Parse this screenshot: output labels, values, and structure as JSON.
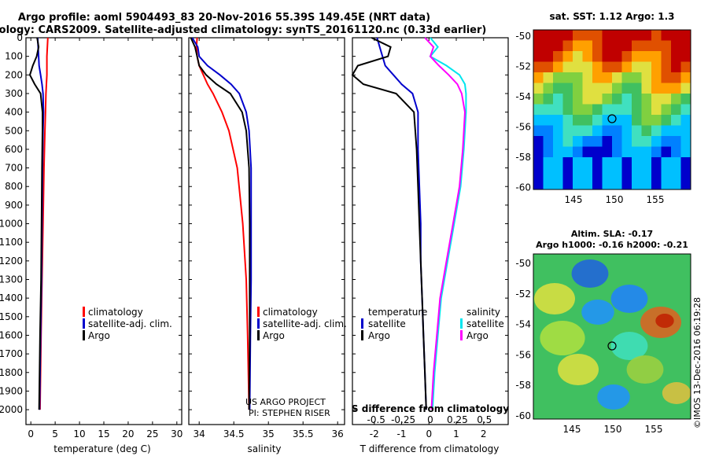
{
  "title_line1": "Argo profile: aoml 5904493_83 20-Nov-2016 55.39S 149.45E (NRT data)",
  "title_line2": "Climatology: CARS2009. Satellite-adjusted climatology: synTS_20161120.nc (0.33d earlier)",
  "colors": {
    "climatology": "#ff0000",
    "satellite": "#0000cc",
    "argo": "#000000",
    "sat_salinity": "#00e5ee",
    "clim_salinity": "#ff00ff"
  },
  "depth_ticks": [
    "0",
    "100",
    "200",
    "300",
    "400",
    "500",
    "600",
    "700",
    "800",
    "900",
    "1000",
    "1100",
    "1200",
    "1300",
    "1400",
    "1500",
    "1600",
    "1700",
    "1800",
    "1900",
    "2000"
  ],
  "panels": {
    "temperature": {
      "xlabel": "temperature (deg C)",
      "xticks": [
        "0",
        "5",
        "10",
        "15",
        "20",
        "25",
        "30"
      ],
      "legend": [
        "climatology",
        "satellite-adj. clim.",
        "Argo"
      ]
    },
    "salinity": {
      "xlabel": "salinity",
      "xticks": [
        "34",
        "34.5",
        "35",
        "35.5",
        "36"
      ],
      "legend": [
        "climatology",
        "satellite-adj. clim.",
        "Argo"
      ],
      "credit1": "US ARGO PROJECT",
      "credit2": "PI: STEPHEN RISER"
    },
    "difference": {
      "xlabel": "T difference from climatology",
      "xticks": [
        "-2",
        "-1",
        "0",
        "1",
        "2"
      ],
      "legend_t_head": "temperature",
      "legend_t": [
        "satellite",
        "Argo"
      ],
      "legend_s_head": "salinity",
      "legend_s": [
        "satellite",
        "Argo"
      ],
      "s_axis_label": "S difference from climatology",
      "s_ticks": [
        "-0.5",
        "-0.25",
        "0",
        "0.25",
        "0.5"
      ]
    }
  },
  "maps": {
    "sst_title": "sat. SST: 1.12 Argo: 1.3",
    "sla_title1": "Altim. SLA: -0.17",
    "sla_title2": "Argo h1000: -0.16 h2000: -0.21",
    "lat_ticks": [
      "-50",
      "-52",
      "-54",
      "-56",
      "-58",
      "-60"
    ],
    "lon_ticks": [
      "145",
      "150",
      "155"
    ],
    "watermark": "©IMOS 13-Dec-2016 06:19:28"
  },
  "chart_data": [
    {
      "type": "line",
      "title": "Argo profile: aoml 5904493_83 20-Nov-2016 55.39S 149.45E (NRT data)",
      "xlabel": "temperature (deg C)",
      "ylabel": "",
      "xlim": [
        -1,
        31
      ],
      "ylim": [
        2080,
        0
      ],
      "y": [
        0,
        50,
        100,
        150,
        200,
        250,
        300,
        400,
        500,
        700,
        1000,
        1300,
        1600,
        2000
      ],
      "series": [
        {
          "name": "climatology",
          "values": [
            3.5,
            3.4,
            3.3,
            3.3,
            3.3,
            3.2,
            3.1,
            3.0,
            2.9,
            2.7,
            2.5,
            2.3,
            2.1,
            1.9
          ]
        },
        {
          "name": "satellite-adj. clim.",
          "values": [
            1.4,
            1.5,
            1.6,
            1.7,
            2.0,
            2.3,
            2.5,
            2.6,
            2.5,
            2.4,
            2.3,
            2.2,
            2.0,
            1.8
          ]
        },
        {
          "name": "Argo",
          "values": [
            1.3,
            1.6,
            1.2,
            0.4,
            -0.2,
            0.8,
            2.0,
            2.4,
            2.4,
            2.3,
            2.2,
            2.1,
            1.9,
            1.7
          ]
        }
      ]
    },
    {
      "type": "line",
      "xlabel": "salinity",
      "xlim": [
        33.85,
        36.1
      ],
      "ylim": [
        2080,
        0
      ],
      "y": [
        0,
        50,
        100,
        150,
        200,
        250,
        300,
        400,
        500,
        700,
        1000,
        1300,
        1600,
        2000
      ],
      "series": [
        {
          "name": "climatology",
          "values": [
            33.97,
            33.96,
            33.97,
            34.0,
            34.06,
            34.12,
            34.2,
            34.33,
            34.43,
            34.55,
            34.63,
            34.68,
            34.7,
            34.72
          ]
        },
        {
          "name": "satellite-adj. clim.",
          "values": [
            33.9,
            33.98,
            34.0,
            34.12,
            34.3,
            34.46,
            34.58,
            34.68,
            34.72,
            34.75,
            34.75,
            34.75,
            34.74,
            34.73
          ]
        },
        {
          "name": "Argo",
          "values": [
            33.88,
            33.94,
            33.97,
            34.0,
            34.1,
            34.25,
            34.45,
            34.62,
            34.68,
            34.72,
            34.73,
            34.73,
            34.73,
            34.72
          ]
        }
      ]
    },
    {
      "type": "line",
      "xlabel": "T difference from climatology",
      "xlim": [
        -2.8,
        2.9
      ],
      "ylim": [
        2080,
        0
      ],
      "y": [
        0,
        50,
        100,
        150,
        200,
        250,
        300,
        400,
        600,
        800,
        1000,
        1200,
        1400,
        1600,
        1800,
        2000
      ],
      "series": [
        {
          "name": "temperature satellite",
          "values": [
            -1.9,
            -1.8,
            -1.7,
            -1.6,
            -1.3,
            -1.0,
            -0.6,
            -0.4,
            -0.4,
            -0.35,
            -0.3,
            -0.3,
            -0.25,
            -0.2,
            -0.15,
            -0.1
          ]
        },
        {
          "name": "temperature Argo",
          "values": [
            -2.1,
            -1.4,
            -1.5,
            -2.6,
            -3.0,
            -2.4,
            -1.2,
            -0.55,
            -0.45,
            -0.4,
            -0.35,
            -0.3,
            -0.25,
            -0.2,
            -0.15,
            -0.1
          ]
        },
        {
          "name": "salinity satellite",
          "values": [
            0.0,
            0.07,
            0.0,
            0.15,
            0.27,
            0.32,
            0.33,
            0.33,
            0.31,
            0.28,
            0.22,
            0.16,
            0.1,
            0.07,
            0.04,
            0.02
          ]
        },
        {
          "name": "salinity Argo",
          "values": [
            -0.05,
            0.03,
            0.0,
            0.08,
            0.17,
            0.25,
            0.29,
            0.32,
            0.3,
            0.27,
            0.21,
            0.15,
            0.09,
            0.06,
            0.03,
            0.01
          ]
        }
      ]
    }
  ]
}
